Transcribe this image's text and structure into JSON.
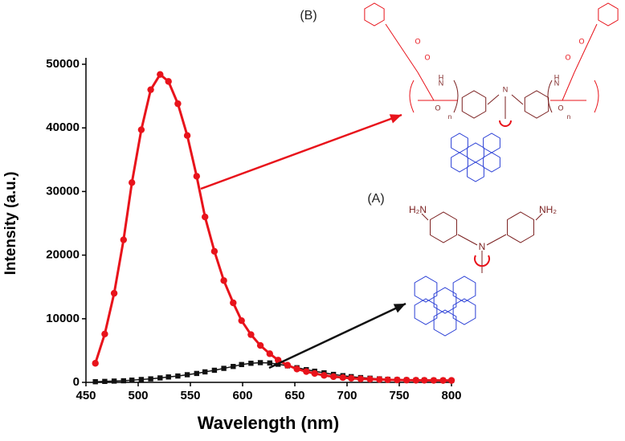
{
  "chart_data": {
    "type": "line",
    "x_label": "Wavelength (nm)",
    "y_label": "Intensity (a.u.)",
    "xlim": [
      450,
      800
    ],
    "xticks": [
      450,
      500,
      550,
      600,
      650,
      700,
      750,
      800
    ],
    "ylim": [
      0,
      50000
    ],
    "yticks": [
      0,
      10000,
      20000,
      30000,
      40000,
      50000
    ],
    "x": [
      459,
      468,
      477,
      486,
      494,
      503,
      512,
      521,
      529,
      538,
      547,
      556,
      564,
      573,
      582,
      591,
      599,
      608,
      617,
      626,
      634,
      643,
      652,
      661,
      669,
      678,
      687,
      696,
      704,
      713,
      722,
      731,
      739,
      748,
      757,
      766,
      774,
      783,
      792,
      800
    ],
    "series": [
      {
        "name": "(B)",
        "color": "#e8131b",
        "marker": "circle",
        "values": [
          3000,
          7600,
          14000,
          22400,
          31400,
          39700,
          46000,
          48400,
          47300,
          43800,
          38800,
          32400,
          26000,
          20600,
          16000,
          12500,
          9700,
          7500,
          5800,
          4500,
          3500,
          2700,
          2100,
          1700,
          1400,
          1100,
          900,
          750,
          650,
          550,
          500,
          450,
          400,
          380,
          350,
          330,
          320,
          310,
          300,
          300
        ]
      },
      {
        "name": "(A)",
        "color": "#111111",
        "marker": "square",
        "values": [
          100,
          150,
          200,
          250,
          350,
          450,
          550,
          700,
          850,
          1000,
          1200,
          1400,
          1650,
          1900,
          2200,
          2500,
          2800,
          3000,
          3100,
          3050,
          2850,
          2600,
          2300,
          2000,
          1750,
          1500,
          1250,
          1050,
          900,
          750,
          650,
          550,
          480,
          420,
          380,
          350,
          330,
          310,
          300,
          290
        ]
      }
    ],
    "structure_labels": {
      "A": [
        "H₂N",
        "NH₂",
        "N"
      ],
      "B": [
        "O",
        "O",
        "O",
        "O",
        "H",
        "N",
        "H",
        "N",
        "N",
        "n",
        "n",
        "O",
        "O"
      ]
    }
  }
}
